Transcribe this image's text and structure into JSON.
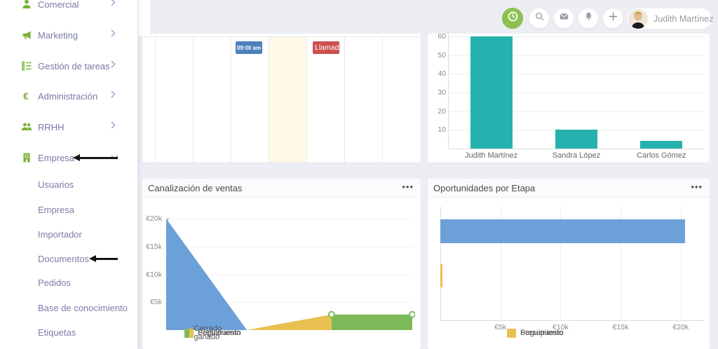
{
  "colors": {
    "green_icon": "#79b234",
    "clock_button": "#8cc152",
    "nav_text": "#7779a8",
    "teal_bar": "#25b1ae",
    "blue_area": "#6ca0d8",
    "yellow_area": "#e9c04f",
    "green_area": "#7cba59",
    "badge_blue": "#4d80ba",
    "badge_red": "#ca5150",
    "today_column": "#fdf8e8",
    "page_bg": "#edeef4"
  },
  "sidebar": {
    "items": [
      {
        "label": "Comercial",
        "icon": "user-icon",
        "chevron": "right"
      },
      {
        "label": "Marketing",
        "icon": "megaphone-icon",
        "chevron": "right"
      },
      {
        "label": "Gestión de tareas",
        "icon": "tasks-icon",
        "chevron": "right"
      },
      {
        "label": "Administración",
        "icon": "euro-icon",
        "chevron": "right"
      },
      {
        "label": "RRHH",
        "icon": "people-icon",
        "chevron": "right"
      },
      {
        "label": "Empresa",
        "icon": "building-icon",
        "chevron": "down"
      }
    ],
    "submenu": [
      {
        "label": "Usuarios"
      },
      {
        "label": "Empresa"
      },
      {
        "label": "Importador"
      },
      {
        "label": "Documentos"
      },
      {
        "label": "Pedidos"
      },
      {
        "label": "Base de conocimiento"
      },
      {
        "label": "Etiquetas"
      }
    ]
  },
  "topbar": {
    "icons": [
      "clock-icon",
      "search-icon",
      "mail-icon",
      "bell-icon",
      "plus-icon"
    ],
    "user_name": "Judith Martínez"
  },
  "calendar": {
    "events": [
      {
        "label": "09:00 am",
        "type": "time-badge"
      },
      {
        "label": "Llamada",
        "type": "call-badge"
      }
    ]
  },
  "panels": {
    "pipeline": {
      "title": "Canalización de ventas",
      "menu_icon": "•••"
    },
    "stages": {
      "title": "Oportunidades por Etapa",
      "menu_icon": "•••"
    }
  },
  "chart_data": [
    {
      "type": "bar",
      "categories": [
        "Judith Martínez",
        "Sandra López",
        "Carlos Gómez"
      ],
      "values": [
        60,
        10,
        4
      ],
      "yticks": [
        10,
        20,
        30,
        40,
        50,
        60
      ],
      "ylim": [
        0,
        61.5
      ],
      "bar_color": "#25b1ae",
      "grid": true,
      "legend_position": "none"
    },
    {
      "type": "area",
      "title": "Canalización de ventas",
      "yticks": [
        "€5k",
        "€10k",
        "€15k",
        "€20k"
      ],
      "ytick_values": [
        5000,
        10000,
        15000,
        20000
      ],
      "ylim": [
        0,
        20000
      ],
      "series": [
        {
          "name": "Presupuesto",
          "color": "#6ca0d8",
          "points": [
            [
              0,
              20000
            ],
            [
              0.328,
              0
            ]
          ]
        },
        {
          "name": "Seguimiento",
          "color": "#e9c04f",
          "points": [
            [
              0.328,
              0
            ],
            [
              0.672,
              2800
            ]
          ]
        },
        {
          "name": "Cerrado ganado",
          "color": "#7cba59",
          "points": [
            [
              0.672,
              2800
            ],
            [
              1,
              2800
            ]
          ]
        }
      ],
      "markers": [
        [
          0,
          20000
        ],
        [
          0.672,
          2800
        ],
        [
          1,
          2800
        ]
      ],
      "legend": [
        "Presupuesto",
        "Seguimiento",
        "Cerrado ganado"
      ],
      "legend_position": "bottom"
    },
    {
      "type": "bar-horizontal",
      "title": "Oportunidades por Etapa",
      "categories": [
        "Presupuesto",
        "Seguimiento"
      ],
      "values": [
        20350,
        200
      ],
      "colors": [
        "#6ca0d8",
        "#e9c04f"
      ],
      "xticks": [
        "€5k",
        "€10k",
        "€15k",
        "€20k"
      ],
      "xtick_values": [
        5000,
        10000,
        15000,
        20000
      ],
      "xlim": [
        0,
        21700
      ],
      "legend": [
        "Presupuesto",
        "Seguimiento"
      ],
      "legend_position": "bottom"
    }
  ]
}
